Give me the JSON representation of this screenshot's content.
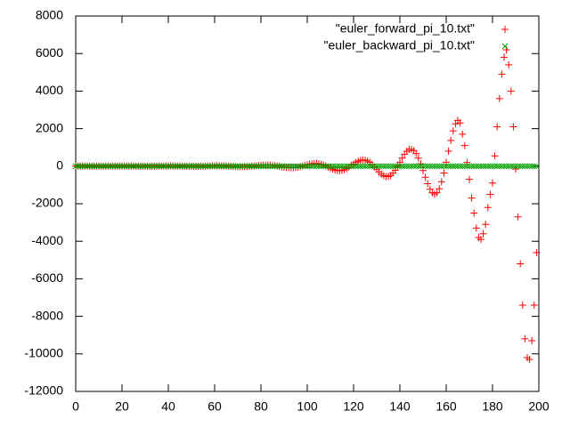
{
  "chart_data": {
    "type": "scatter",
    "x": [
      0,
      1,
      2,
      3,
      4,
      5,
      6,
      7,
      8,
      9,
      10,
      11,
      12,
      13,
      14,
      15,
      16,
      17,
      18,
      19,
      20,
      21,
      22,
      23,
      24,
      25,
      26,
      27,
      28,
      29,
      30,
      31,
      32,
      33,
      34,
      35,
      36,
      37,
      38,
      39,
      40,
      41,
      42,
      43,
      44,
      45,
      46,
      47,
      48,
      49,
      50,
      51,
      52,
      53,
      54,
      55,
      56,
      57,
      58,
      59,
      60,
      61,
      62,
      63,
      64,
      65,
      66,
      67,
      68,
      69,
      70,
      71,
      72,
      73,
      74,
      75,
      76,
      77,
      78,
      79,
      80,
      81,
      82,
      83,
      84,
      85,
      86,
      87,
      88,
      89,
      90,
      91,
      92,
      93,
      94,
      95,
      96,
      97,
      98,
      99,
      100,
      101,
      102,
      103,
      104,
      105,
      106,
      107,
      108,
      109,
      110,
      111,
      112,
      113,
      114,
      115,
      116,
      117,
      118,
      119,
      120,
      121,
      122,
      123,
      124,
      125,
      126,
      127,
      128,
      129,
      130,
      131,
      132,
      133,
      134,
      135,
      136,
      137,
      138,
      139,
      140,
      141,
      142,
      143,
      144,
      145,
      146,
      147,
      148,
      149,
      150,
      151,
      152,
      153,
      154,
      155,
      156,
      157,
      158,
      159,
      160,
      161,
      162,
      163,
      164,
      165,
      166,
      167,
      168,
      169,
      170,
      171,
      172,
      173,
      174,
      175,
      176,
      177,
      178,
      179,
      180,
      181,
      182,
      183,
      184,
      185,
      186,
      187,
      188,
      189,
      190,
      191,
      192,
      193,
      194,
      195,
      196,
      197,
      198,
      199
    ],
    "series": [
      {
        "name": "\"euler_forward_pi_10.txt\"",
        "color": "#ff0000",
        "marker": "plus",
        "values": [
          1,
          1,
          1,
          0,
          0,
          0,
          -1,
          -1,
          -1,
          -1,
          -2,
          -1,
          -1,
          -1,
          0,
          0,
          1,
          1,
          2,
          2,
          2,
          2,
          2,
          1,
          1,
          0,
          -1,
          -2,
          -3,
          -4,
          -4,
          -4,
          -4,
          -3,
          -2,
          0,
          2,
          3,
          5,
          6,
          7,
          7,
          6,
          5,
          3,
          1,
          -2,
          -5,
          -7,
          -9,
          -11,
          -11,
          -11,
          -9,
          -6,
          -3,
          2,
          6,
          10,
          14,
          17,
          18,
          18,
          16,
          12,
          7,
          0,
          -8,
          -15,
          -22,
          -27,
          -30,
          -30,
          -28,
          -22,
          -14,
          -3,
          9,
          22,
          33,
          43,
          49,
          51,
          53,
          50,
          42,
          28,
          11,
          -10,
          -31,
          -52,
          -69,
          -82,
          -87,
          -85,
          -75,
          -54,
          -28,
          6,
          40,
          76,
          107,
          130,
          143,
          143,
          129,
          102,
          60,
          7,
          -50,
          -109,
          -163,
          -204,
          -232,
          -239,
          -224,
          -186,
          -125,
          -47,
          41,
          116,
          195,
          264,
          318,
          336,
          324,
          277,
          201,
          95,
          -35,
          -168,
          -306,
          -422,
          -505,
          -553,
          -546,
          -488,
          -371,
          -215,
          -7,
          207,
          435,
          637,
          796,
          898,
          895,
          823,
          671,
          427,
          124,
          -235,
          -592,
          -932,
          -1223,
          -1413,
          -1484,
          -1416,
          -1206,
          -832,
          -364,
          210,
          802,
          1368,
          1879,
          2251,
          2437,
          2300,
          1700,
          1100,
          200,
          -700,
          -1700,
          -2500,
          -3300,
          -3800,
          -3900,
          -3600,
          -3100,
          -2200,
          -1500,
          -900,
          550,
          2100,
          3600,
          4900,
          5800,
          6200,
          5400,
          4000,
          2100,
          -150,
          -2700,
          -5200,
          -7400,
          -9200,
          -10200,
          -10300,
          -9300,
          -7400,
          -4600
        ]
      },
      {
        "name": "\"euler_backward_pi_10.txt\"",
        "color": "#00a000",
        "marker": "cross",
        "values": [
          1,
          1,
          1,
          0,
          0,
          0,
          -1,
          -1,
          -1,
          -1,
          -1,
          -1,
          0,
          0,
          0,
          0,
          0,
          0,
          0,
          0,
          0,
          0,
          0,
          0,
          0,
          0,
          0,
          0,
          0,
          0,
          0,
          0,
          0,
          0,
          0,
          0,
          0,
          0,
          0,
          0,
          0,
          0,
          0,
          0,
          0,
          0,
          0,
          0,
          0,
          0,
          0,
          0,
          0,
          0,
          0,
          0,
          0,
          0,
          0,
          0,
          0,
          0,
          0,
          0,
          0,
          0,
          0,
          0,
          0,
          0,
          0,
          0,
          0,
          0,
          0,
          0,
          0,
          0,
          0,
          0,
          0,
          0,
          0,
          0,
          0,
          0,
          0,
          0,
          0,
          0,
          0,
          0,
          0,
          0,
          0,
          0,
          0,
          0,
          0,
          0,
          0,
          0,
          0,
          0,
          0,
          0,
          0,
          0,
          0,
          0,
          0,
          0,
          0,
          0,
          0,
          0,
          0,
          0,
          0,
          0,
          0,
          0,
          0,
          0,
          0,
          0,
          0,
          0,
          0,
          0,
          0,
          0,
          0,
          0,
          0,
          0,
          0,
          0,
          0,
          0,
          0,
          0,
          0,
          0,
          0,
          0,
          0,
          0,
          0,
          0,
          0,
          0,
          0,
          0,
          0,
          0,
          0,
          0,
          0,
          0,
          0,
          0,
          0,
          0,
          0,
          0,
          0,
          0,
          0,
          0,
          0,
          0,
          0,
          0,
          0,
          0,
          0,
          0,
          0,
          0,
          0,
          0,
          0,
          0,
          0,
          0,
          0,
          0,
          0,
          0,
          0,
          0,
          0,
          0,
          0,
          0,
          0,
          0,
          0,
          0
        ]
      }
    ],
    "xlim": [
      0,
      200
    ],
    "xticks": [
      0,
      20,
      40,
      60,
      80,
      100,
      120,
      140,
      160,
      180,
      200
    ],
    "ylim": [
      -12000,
      8000
    ],
    "yticks": [
      -12000,
      -10000,
      -8000,
      -6000,
      -4000,
      -2000,
      0,
      2000,
      4000,
      6000,
      8000
    ],
    "grid": false,
    "legend": "top-right"
  }
}
